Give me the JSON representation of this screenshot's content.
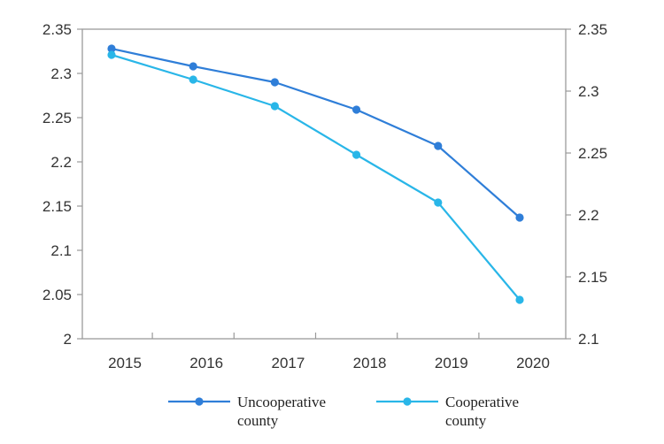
{
  "chart_data": {
    "type": "line",
    "categories": [
      "2015",
      "2016",
      "2017",
      "2018",
      "2019",
      "2020"
    ],
    "left_axis": {
      "ylim": [
        2,
        2.35
      ],
      "ticks": [
        "2",
        "2.05",
        "2.1",
        "2.15",
        "2.2",
        "2.25",
        "2.3",
        "2.35"
      ]
    },
    "right_axis": {
      "ylim": [
        2.1,
        2.35
      ],
      "ticks": [
        "2.1",
        "2.15",
        "2.2",
        "2.25",
        "2.3",
        "2.35"
      ]
    },
    "series": [
      {
        "name": "Uncooperative county",
        "legend_lines": [
          "Uncooperative",
          "county"
        ],
        "color": "#2f7ed8",
        "axis": "left",
        "values": [
          2.328,
          2.308,
          2.29,
          2.259,
          2.218,
          2.137
        ]
      },
      {
        "name": "Cooperative county",
        "legend_lines": [
          "Cooperative",
          "county"
        ],
        "color": "#29b6e8",
        "axis": "left",
        "values": [
          2.321,
          2.293,
          2.263,
          2.208,
          2.154,
          2.044
        ]
      }
    ],
    "grid": false,
    "legend_position": "bottom"
  }
}
